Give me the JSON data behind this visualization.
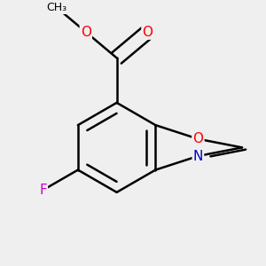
{
  "background_color": "#efefef",
  "bond_color": "#000000",
  "bond_width": 1.8,
  "atom_colors": {
    "O": "#ff0000",
    "N": "#0000cd",
    "F": "#cc00cc",
    "C": "#000000"
  },
  "font_size": 11,
  "fig_size": [
    3.0,
    3.0
  ],
  "dpi": 100
}
